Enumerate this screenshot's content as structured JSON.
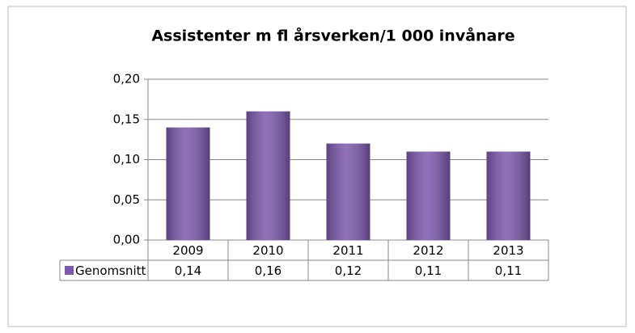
{
  "chart_data": {
    "type": "bar",
    "title": "Assistenter m fl årsverken/1 000 invånare",
    "categories": [
      "2009",
      "2010",
      "2011",
      "2012",
      "2013"
    ],
    "series": [
      {
        "name": "Genomsnitt",
        "color": "#7b58ad",
        "values": [
          0.14,
          0.16,
          0.12,
          0.11,
          0.11
        ],
        "value_labels": [
          "0,14",
          "0,16",
          "0,12",
          "0,11",
          "0,11"
        ]
      }
    ],
    "ylim": [
      0,
      0.2
    ],
    "yticks": [
      {
        "value": 0,
        "label": "0,00"
      },
      {
        "value": 0.05,
        "label": "0,05"
      },
      {
        "value": 0.1,
        "label": "0,10"
      },
      {
        "value": 0.15,
        "label": "0,15"
      },
      {
        "value": 0.2,
        "label": "0,20"
      }
    ],
    "grid": true,
    "data_table": true
  }
}
